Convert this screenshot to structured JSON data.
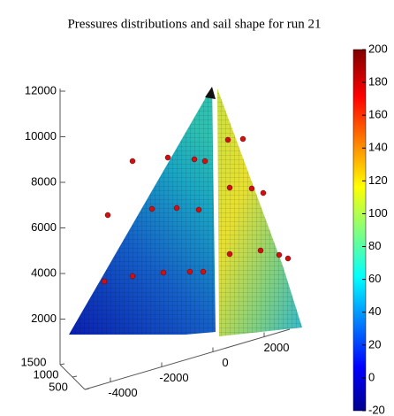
{
  "chart_data": {
    "type": "surface",
    "title": "Pressures distributions and sail shape for run 21",
    "xlim": [
      -5000,
      3000
    ],
    "xticks": [
      -4000,
      -2000,
      0,
      2000
    ],
    "ylim": [
      500,
      1500
    ],
    "yticks": [
      500,
      1000,
      1500
    ],
    "zlim": [
      0,
      12000
    ],
    "zticks": [
      2000,
      4000,
      6000,
      8000,
      10000,
      12000
    ],
    "clim": [
      -20,
      200
    ],
    "cticks": [
      -20,
      0,
      20,
      40,
      60,
      80,
      100,
      120,
      140,
      160,
      180,
      200
    ]
  }
}
